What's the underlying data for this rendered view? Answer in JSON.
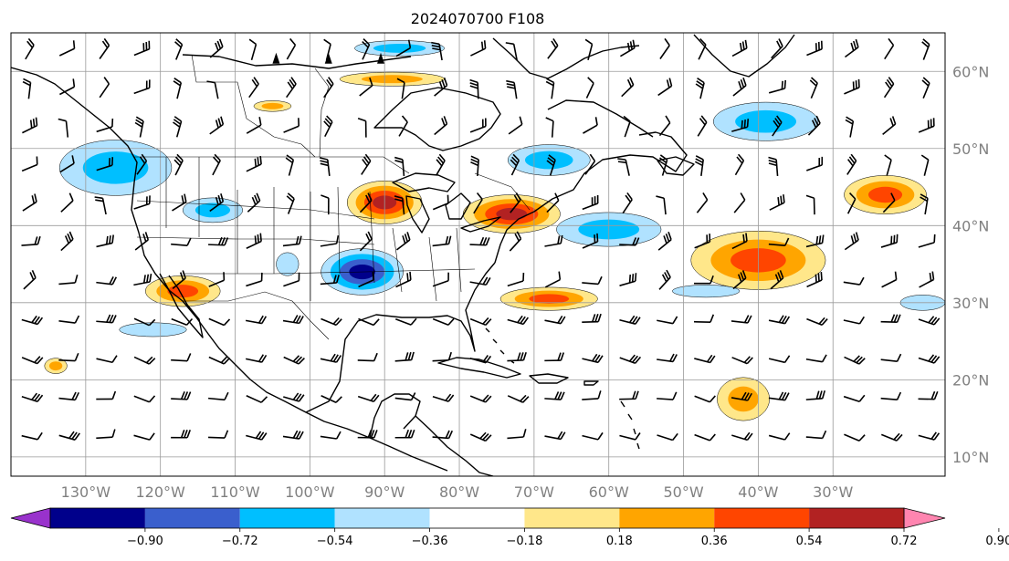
{
  "title": "2024070700 F108",
  "map": {
    "lon_range": [
      -140,
      -15
    ],
    "lat_range": [
      7.5,
      65
    ],
    "lat_ticks": [
      {
        "value": 60,
        "label": "60°N"
      },
      {
        "value": 50,
        "label": "50°N"
      },
      {
        "value": 40,
        "label": "40°N"
      },
      {
        "value": 30,
        "label": "30°N"
      },
      {
        "value": 20,
        "label": "20°N"
      },
      {
        "value": 10,
        "label": "10°N"
      }
    ],
    "lon_ticks": [
      {
        "value": -130,
        "label": "130°W"
      },
      {
        "value": -120,
        "label": "120°W"
      },
      {
        "value": -110,
        "label": "110°W"
      },
      {
        "value": -100,
        "label": "100°W"
      },
      {
        "value": -90,
        "label": "90°W"
      },
      {
        "value": -80,
        "label": "80°W"
      },
      {
        "value": -70,
        "label": "70°W"
      },
      {
        "value": -60,
        "label": "60°W"
      },
      {
        "value": -50,
        "label": "50°W"
      },
      {
        "value": -40,
        "label": "40°W"
      },
      {
        "value": -30,
        "label": "30°W"
      }
    ],
    "grid": true,
    "gridline_color": "#9a9a9a"
  },
  "colorbar": {
    "labels": [
      "−0.90",
      "−0.72",
      "−0.54",
      "−0.36",
      "−0.18",
      "0.18",
      "0.36",
      "0.54",
      "0.72",
      "0.90"
    ],
    "colors": [
      "#9932cc",
      "#00008b",
      "#3a5fcd",
      "#00bfff",
      "#b0e2ff",
      "#ffffff",
      "#ffe78a",
      "#ffa500",
      "#ff4500",
      "#b22222",
      "#ff85b0"
    ],
    "extend": "both"
  },
  "anomalies": [
    {
      "lon": -126,
      "lat": 47.5,
      "rx": 7.5,
      "ry": 3.6,
      "level": -0.36
    },
    {
      "lon": -113,
      "lat": 42.0,
      "rx": 4.0,
      "ry": 1.6,
      "level": -0.36
    },
    {
      "lon": -93,
      "lat": 34.0,
      "rx": 5.5,
      "ry": 3.0,
      "level": -0.72
    },
    {
      "lon": -90,
      "lat": 43.0,
      "rx": 5.0,
      "ry": 2.8,
      "level": 0.72
    },
    {
      "lon": -73,
      "lat": 41.5,
      "rx": 6.5,
      "ry": 2.5,
      "level": 0.72
    },
    {
      "lon": -68,
      "lat": 48.5,
      "rx": 5.5,
      "ry": 2.0,
      "level": -0.36
    },
    {
      "lon": -60,
      "lat": 39.5,
      "rx": 7.0,
      "ry": 2.2,
      "level": -0.36
    },
    {
      "lon": -68,
      "lat": 30.5,
      "rx": 6.5,
      "ry": 1.5,
      "level": 0.54
    },
    {
      "lon": -117,
      "lat": 31.5,
      "rx": 5.0,
      "ry": 2.0,
      "level": 0.54
    },
    {
      "lon": -40,
      "lat": 35.5,
      "rx": 9.0,
      "ry": 3.8,
      "level": 0.54
    },
    {
      "lon": -23,
      "lat": 44.0,
      "rx": 5.5,
      "ry": 2.5,
      "level": 0.54
    },
    {
      "lon": -39,
      "lat": 53.5,
      "rx": 7.0,
      "ry": 2.5,
      "level": -0.36
    },
    {
      "lon": -88,
      "lat": 63.0,
      "rx": 6.0,
      "ry": 1.0,
      "level": -0.36
    },
    {
      "lon": -89,
      "lat": 59.0,
      "rx": 7.0,
      "ry": 0.9,
      "level": 0.36
    },
    {
      "lon": -105,
      "lat": 55.5,
      "rx": 2.5,
      "ry": 0.7,
      "level": 0.36
    },
    {
      "lon": -42,
      "lat": 17.5,
      "rx": 3.5,
      "ry": 2.8,
      "level": 0.36
    },
    {
      "lon": -47,
      "lat": 31.5,
      "rx": 4.5,
      "ry": 0.8,
      "level": -0.18
    },
    {
      "lon": -121,
      "lat": 26.5,
      "rx": 4.5,
      "ry": 0.9,
      "level": -0.18
    },
    {
      "lon": -18,
      "lat": 30.0,
      "rx": 3.0,
      "ry": 1.0,
      "level": -0.18
    },
    {
      "lon": -103,
      "lat": 35.0,
      "rx": 1.5,
      "ry": 1.5,
      "level": -0.18
    },
    {
      "lon": -134,
      "lat": 21.8,
      "rx": 1.5,
      "ry": 1.0,
      "level": 0.36
    }
  ]
}
